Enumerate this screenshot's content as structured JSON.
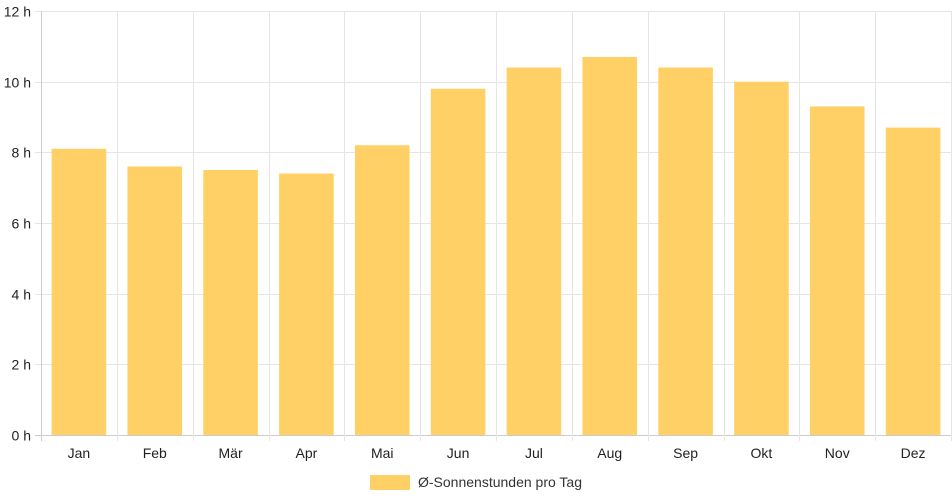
{
  "chart_data": {
    "type": "bar",
    "categories": [
      "Jan",
      "Feb",
      "Mär",
      "Apr",
      "Mai",
      "Jun",
      "Jul",
      "Aug",
      "Sep",
      "Okt",
      "Nov",
      "Dez"
    ],
    "series": [
      {
        "name": "Ø-Sonnenstunden pro Tag",
        "values": [
          8.1,
          7.6,
          7.5,
          7.4,
          8.2,
          9.8,
          10.4,
          10.7,
          10.4,
          10.0,
          9.3,
          8.7
        ]
      }
    ],
    "ylim": [
      0,
      12
    ],
    "yticks": [
      0,
      2,
      4,
      6,
      8,
      10,
      12
    ],
    "y_unit_suffix": " h",
    "grid": true,
    "legend_position": "bottom",
    "colors": {
      "bar": "#ffd066",
      "grid": "#e5e5e5",
      "axis": "#cccccc"
    }
  }
}
